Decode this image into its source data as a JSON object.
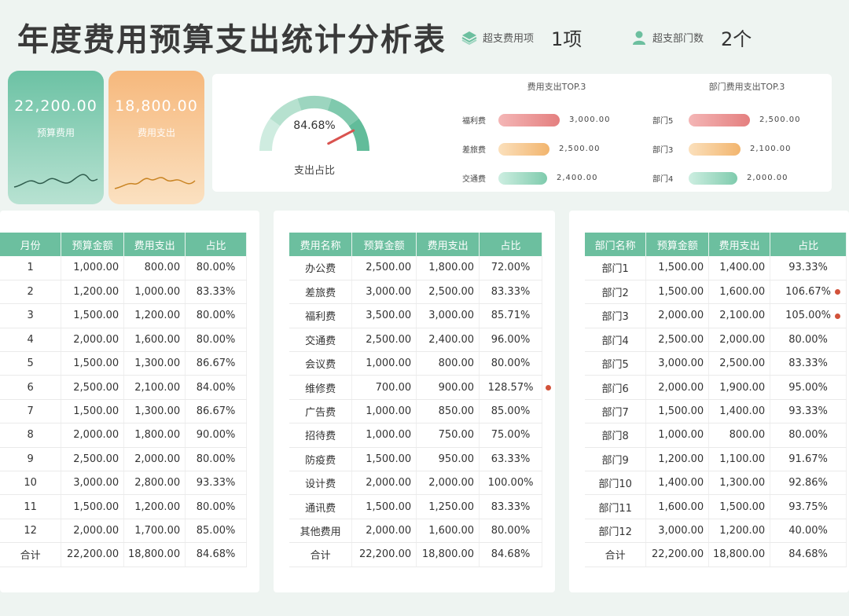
{
  "header": {
    "title": "年度费用预算支出统计分析表",
    "over_items_label": "超支费用项",
    "over_items_value": "1项",
    "over_depts_label": "超支部门数",
    "over_depts_value": "2个"
  },
  "kpi": {
    "budget_value": "22,200.00",
    "budget_label": "预算费用",
    "spend_value": "18,800.00",
    "spend_label": "费用支出"
  },
  "gauge": {
    "value": "84.68%",
    "fraction": 0.8468,
    "label": "支出占比"
  },
  "top_expenses": {
    "title": "费用支出TOP.3",
    "items": [
      {
        "name": "福利费",
        "value": "3,000.00",
        "amount": 3000
      },
      {
        "name": "差旅费",
        "value": "2,500.00",
        "amount": 2500
      },
      {
        "name": "交通费",
        "value": "2,400.00",
        "amount": 2400
      }
    ]
  },
  "top_depts": {
    "title": "部门费用支出TOP.3",
    "items": [
      {
        "name": "部门5",
        "value": "2,500.00",
        "amount": 2500
      },
      {
        "name": "部门3",
        "value": "2,100.00",
        "amount": 2100
      },
      {
        "name": "部门4",
        "value": "2,000.00",
        "amount": 2000
      }
    ]
  },
  "monthly": {
    "headers": [
      "月份",
      "预算金额",
      "费用支出",
      "占比"
    ],
    "rows": [
      [
        "1",
        "1,000.00",
        "800.00",
        "80.00%"
      ],
      [
        "2",
        "1,200.00",
        "1,000.00",
        "83.33%"
      ],
      [
        "3",
        "1,500.00",
        "1,200.00",
        "80.00%"
      ],
      [
        "4",
        "2,000.00",
        "1,600.00",
        "80.00%"
      ],
      [
        "5",
        "1,500.00",
        "1,300.00",
        "86.67%"
      ],
      [
        "6",
        "2,500.00",
        "2,100.00",
        "84.00%"
      ],
      [
        "7",
        "1,500.00",
        "1,300.00",
        "86.67%"
      ],
      [
        "8",
        "2,000.00",
        "1,800.00",
        "90.00%"
      ],
      [
        "9",
        "2,500.00",
        "2,000.00",
        "80.00%"
      ],
      [
        "10",
        "3,000.00",
        "2,800.00",
        "93.33%"
      ],
      [
        "11",
        "1,500.00",
        "1,200.00",
        "80.00%"
      ],
      [
        "12",
        "2,000.00",
        "1,700.00",
        "85.00%"
      ],
      [
        "合计",
        "22,200.00",
        "18,800.00",
        "84.68%"
      ]
    ]
  },
  "expenses": {
    "headers": [
      "费用名称",
      "预算金额",
      "费用支出",
      "占比"
    ],
    "rows": [
      [
        "办公费",
        "2,500.00",
        "1,800.00",
        "72.00%"
      ],
      [
        "差旅费",
        "3,000.00",
        "2,500.00",
        "83.33%"
      ],
      [
        "福利费",
        "3,500.00",
        "3,000.00",
        "85.71%"
      ],
      [
        "交通费",
        "2,500.00",
        "2,400.00",
        "96.00%"
      ],
      [
        "会议费",
        "1,000.00",
        "800.00",
        "80.00%"
      ],
      [
        "维修费",
        "700.00",
        "900.00",
        "128.57%"
      ],
      [
        "广告费",
        "1,000.00",
        "850.00",
        "85.00%"
      ],
      [
        "招待费",
        "1,000.00",
        "750.00",
        "75.00%"
      ],
      [
        "防疫费",
        "1,500.00",
        "950.00",
        "63.33%"
      ],
      [
        "设计费",
        "2,000.00",
        "2,000.00",
        "100.00%"
      ],
      [
        "通讯费",
        "1,500.00",
        "1,250.00",
        "83.33%"
      ],
      [
        "其他费用",
        "2,000.00",
        "1,600.00",
        "80.00%"
      ],
      [
        "合计",
        "22,200.00",
        "18,800.00",
        "84.68%"
      ]
    ]
  },
  "departments": {
    "headers": [
      "部门名称",
      "预算金额",
      "费用支出",
      "占比"
    ],
    "rows": [
      [
        "部门1",
        "1,500.00",
        "1,400.00",
        "93.33%"
      ],
      [
        "部门2",
        "1,500.00",
        "1,600.00",
        "106.67%"
      ],
      [
        "部门3",
        "2,000.00",
        "2,100.00",
        "105.00%"
      ],
      [
        "部门4",
        "2,500.00",
        "2,000.00",
        "80.00%"
      ],
      [
        "部门5",
        "3,000.00",
        "2,500.00",
        "83.33%"
      ],
      [
        "部门6",
        "2,000.00",
        "1,900.00",
        "95.00%"
      ],
      [
        "部门7",
        "1,500.00",
        "1,400.00",
        "93.33%"
      ],
      [
        "部门8",
        "1,000.00",
        "800.00",
        "80.00%"
      ],
      [
        "部门9",
        "1,200.00",
        "1,100.00",
        "91.67%"
      ],
      [
        "部门10",
        "1,400.00",
        "1,300.00",
        "92.86%"
      ],
      [
        "部门11",
        "1,600.00",
        "1,500.00",
        "93.75%"
      ],
      [
        "部门12",
        "3,000.00",
        "1,200.00",
        "40.00%"
      ],
      [
        "合计",
        "22,200.00",
        "18,800.00",
        "84.68%"
      ]
    ]
  },
  "colors": {
    "green": "#6cbf9f",
    "orange": "#f6b87c",
    "red": "#e88a8a",
    "over_dot": "#d2523a"
  }
}
